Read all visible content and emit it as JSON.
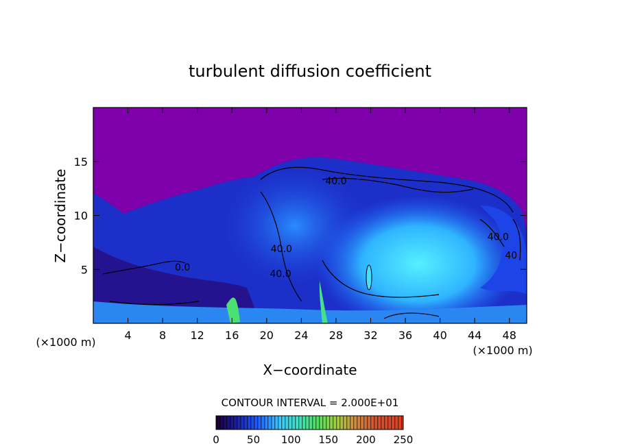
{
  "chart_data": {
    "type": "heatmap",
    "title": "turbulent diffusion coefficient",
    "xlabel": "X−coordinate",
    "ylabel": "Z−coordinate",
    "x_unit_left": "(×1000 m)",
    "x_unit_right": "(×1000 m)",
    "xlim": [
      0,
      50
    ],
    "ylim": [
      0,
      20
    ],
    "x_ticks": [
      "4",
      "8",
      "12",
      "16",
      "20",
      "24",
      "28",
      "32",
      "36",
      "40",
      "44",
      "48"
    ],
    "x_tick_values": [
      4,
      8,
      12,
      16,
      20,
      24,
      28,
      32,
      36,
      40,
      44,
      48
    ],
    "y_ticks": [
      "5",
      "10",
      "15"
    ],
    "y_tick_values": [
      5,
      10,
      15
    ],
    "contour_labels": [
      {
        "text": "40.0",
        "x": 28,
        "y": 12.9
      },
      {
        "text": "40.0",
        "x": 21.7,
        "y": 6.6
      },
      {
        "text": "40.0",
        "x": 21.6,
        "y": 4.3
      },
      {
        "text": "40.0",
        "x": 46.7,
        "y": 7.7
      },
      {
        "text": "40",
        "x": 48.2,
        "y": 6.0
      },
      {
        "text": "0.0",
        "x": 10.3,
        "y": 4.9
      }
    ],
    "contour_interval_label": "CONTOUR INTERVAL = 2.000E+01",
    "colorbar": {
      "range": [
        0,
        250
      ],
      "ticks": [
        "0",
        "50",
        "100",
        "150",
        "200",
        "250"
      ],
      "tick_values": [
        0,
        50,
        100,
        150,
        200,
        250
      ]
    },
    "colors": {
      "background_field": "#7d00aa",
      "low": "#1a0f8f",
      "mid": "#1e5aff",
      "high": "#46e0ff"
    }
  }
}
